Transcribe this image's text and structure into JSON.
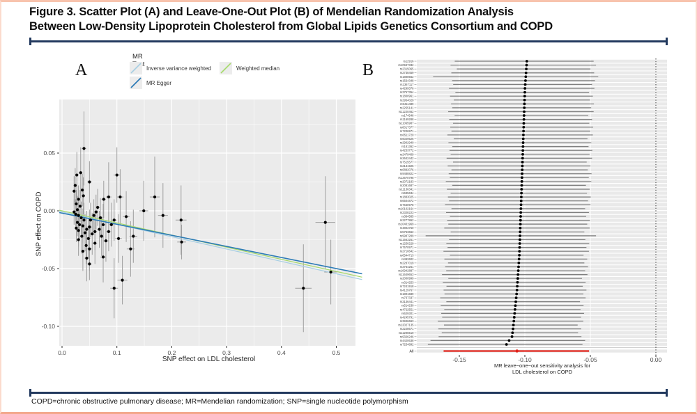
{
  "page": {
    "title_line1": "Figure 3. Scatter Plot (A) and Leave-One-Out Plot (B) of Mendelian Randomization Analysis",
    "title_line2": "Between Low-Density Lipoprotein Cholesterol from Global Lipids Genetics Consortium and COPD",
    "footnote": "COPD=chronic obstructive pulmonary disease; MR=Mendelian randomization; SNP=single nucleotide polymorphism",
    "border_color": "#f3a88d",
    "rule_color": "#22395e"
  },
  "chart_data": [
    {
      "id": "A",
      "panel_label": "A",
      "type": "scatter",
      "xlabel": "SNP effect on LDL cholesterol",
      "ylabel": "SNP effect on COPD",
      "xlim": [
        -0.005,
        0.547
      ],
      "ylim": [
        -0.117,
        0.0945
      ],
      "x_ticks": [
        0.0,
        0.1,
        0.2,
        0.3,
        0.4,
        0.5
      ],
      "x_tick_labels": [
        "0.0",
        "0.1",
        "0.2",
        "0.3",
        "0.4",
        "0.5"
      ],
      "x_minor_ticks": [
        0.05,
        0.15,
        0.25,
        0.35,
        0.45
      ],
      "y_ticks": [
        0.05,
        0.0,
        -0.05,
        -0.1
      ],
      "y_tick_labels": [
        "0.05",
        "0.00",
        "-0.05",
        "-0.10"
      ],
      "y_minor_ticks": [
        0.075,
        0.025,
        -0.025,
        -0.075
      ],
      "grid": true,
      "panel_bg": "#ebebeb",
      "point_color": "#000000",
      "errorbar_color": "#9e9e9e",
      "legend": {
        "title": "MR Test",
        "items": [
          {
            "label": "Inverse variance weighted",
            "color": "#a6cee3"
          },
          {
            "label": "Weighted median",
            "color": "#a5d96a"
          },
          {
            "label": "MR Egger",
            "color": "#2c7bb6"
          }
        ]
      },
      "lines": [
        {
          "name": "Inverse variance weighted",
          "color": "#a6cee3",
          "intercept": -0.001,
          "slope": -0.107,
          "width": 1.2
        },
        {
          "name": "Weighted median",
          "color": "#a5d96a",
          "intercept": 0.0,
          "slope": -0.105,
          "width": 1.2
        },
        {
          "name": "MR Egger",
          "color": "#2c7bb6",
          "intercept": -0.002,
          "slope": -0.096,
          "width": 1.6
        }
      ],
      "points": [
        [
          0.04,
          0.054,
          0.032,
          0.004
        ],
        [
          0.027,
          0.031,
          0.02,
          0.003
        ],
        [
          0.034,
          0.033,
          0.022,
          0.003
        ],
        [
          0.05,
          0.025,
          0.018,
          0.004
        ],
        [
          0.024,
          0.022,
          0.015,
          0.003
        ],
        [
          0.037,
          0.018,
          0.014,
          0.003
        ],
        [
          0.022,
          0.017,
          0.013,
          0.003
        ],
        [
          0.039,
          0.013,
          0.016,
          0.003
        ],
        [
          0.03,
          0.01,
          0.012,
          0.003
        ],
        [
          0.026,
          0.006,
          0.012,
          0.003
        ],
        [
          0.033,
          0.004,
          0.014,
          0.003
        ],
        [
          0.028,
          0.001,
          0.012,
          0.003
        ],
        [
          0.022,
          -0.001,
          0.011,
          0.003
        ],
        [
          0.025,
          -0.003,
          0.013,
          0.003
        ],
        [
          0.03,
          -0.004,
          0.012,
          0.003
        ],
        [
          0.035,
          -0.006,
          0.014,
          0.003
        ],
        [
          0.04,
          -0.008,
          0.015,
          0.003
        ],
        [
          0.028,
          -0.01,
          0.012,
          0.003
        ],
        [
          0.032,
          -0.012,
          0.013,
          0.003
        ],
        [
          0.038,
          -0.013,
          0.015,
          0.003
        ],
        [
          0.026,
          -0.015,
          0.012,
          0.003
        ],
        [
          0.03,
          -0.017,
          0.014,
          0.003
        ],
        [
          0.045,
          -0.016,
          0.016,
          0.004
        ],
        [
          0.05,
          -0.014,
          0.015,
          0.004
        ],
        [
          0.042,
          -0.019,
          0.016,
          0.003
        ],
        [
          0.036,
          -0.022,
          0.015,
          0.003
        ],
        [
          0.03,
          -0.025,
          0.014,
          0.003
        ],
        [
          0.048,
          -0.024,
          0.017,
          0.004
        ],
        [
          0.055,
          -0.02,
          0.018,
          0.004
        ],
        [
          0.06,
          -0.018,
          0.016,
          0.004
        ],
        [
          0.052,
          -0.008,
          0.015,
          0.004
        ],
        [
          0.058,
          -0.004,
          0.014,
          0.004
        ],
        [
          0.062,
          -0.001,
          0.015,
          0.004
        ],
        [
          0.065,
          0.003,
          0.016,
          0.004
        ],
        [
          0.07,
          -0.006,
          0.017,
          0.004
        ],
        [
          0.075,
          -0.012,
          0.018,
          0.004
        ],
        [
          0.068,
          -0.016,
          0.016,
          0.004
        ],
        [
          0.072,
          -0.022,
          0.017,
          0.004
        ],
        [
          0.06,
          -0.028,
          0.018,
          0.004
        ],
        [
          0.044,
          -0.03,
          0.016,
          0.003
        ],
        [
          0.05,
          -0.033,
          0.019,
          0.004
        ],
        [
          0.038,
          -0.035,
          0.017,
          0.003
        ],
        [
          0.045,
          -0.041,
          0.02,
          0.004
        ],
        [
          0.05,
          -0.046,
          0.014,
          0.004
        ],
        [
          0.075,
          -0.04,
          0.022,
          0.005
        ],
        [
          0.08,
          -0.026,
          0.018,
          0.005
        ],
        [
          0.085,
          -0.018,
          0.017,
          0.005
        ],
        [
          0.09,
          -0.012,
          0.019,
          0.005
        ],
        [
          0.095,
          -0.008,
          0.018,
          0.005
        ],
        [
          0.076,
          0.01,
          0.016,
          0.004
        ],
        [
          0.085,
          0.012,
          0.03,
          0.005
        ],
        [
          0.103,
          -0.024,
          0.021,
          0.006
        ],
        [
          0.106,
          0.012,
          0.024,
          0.006
        ],
        [
          0.1,
          0.031,
          0.024,
          0.006
        ],
        [
          0.117,
          -0.005,
          0.022,
          0.006
        ],
        [
          0.11,
          -0.06,
          0.021,
          0.009
        ],
        [
          0.095,
          -0.067,
          0.026,
          0.007
        ],
        [
          0.125,
          -0.033,
          0.024,
          0.007
        ],
        [
          0.13,
          -0.022,
          0.023,
          0.007
        ],
        [
          0.149,
          0.0,
          0.026,
          0.008
        ],
        [
          0.169,
          0.012,
          0.035,
          0.009
        ],
        [
          0.184,
          -0.004,
          0.028,
          0.009
        ],
        [
          0.218,
          -0.027,
          0.015,
          0.008
        ],
        [
          0.217,
          -0.008,
          0.03,
          0.01
        ],
        [
          0.44,
          -0.067,
          0.038,
          0.015
        ],
        [
          0.49,
          -0.053,
          0.028,
          0.012
        ],
        [
          0.48,
          -0.01,
          0.04,
          0.018
        ]
      ]
    },
    {
      "id": "B",
      "panel_label": "B",
      "type": "forest",
      "xlabel_line1": "MR leave−one−out sensitivity analysis for",
      "xlabel_line2": "LDL cholesterol on COPD",
      "xlim": [
        -0.182,
        0.0085
      ],
      "x_ticks": [
        -0.15,
        -0.1,
        -0.05,
        0.0
      ],
      "x_tick_labels": [
        "-0.15",
        "-0.10",
        "-0.05",
        "0.00"
      ],
      "zero_line": 0.0,
      "band_color": "#e9e9e9",
      "ci_color": "#7f7f7f",
      "dot_color": "#000000",
      "all_row": {
        "label": "All",
        "est": -0.106,
        "lo": -0.162,
        "hi": -0.051,
        "color": "#e2231a"
      },
      "rows": [
        [
          "rs12916",
          -0.0985,
          -0.1535,
          -0.0475
        ],
        [
          "rs10947332",
          -0.0987,
          -0.1567,
          -0.0457
        ],
        [
          "rs2315065",
          -0.0989,
          -0.1519,
          -0.0499
        ],
        [
          "rs2738459",
          -0.0991,
          -0.1561,
          -0.0471
        ],
        [
          "rs1800562",
          -0.0993,
          -0.17,
          -0.044
        ],
        [
          "rs1564348",
          -0.0995,
          -0.1555,
          -0.0465
        ],
        [
          "rs1367117",
          -0.0997,
          -0.1547,
          -0.0487
        ],
        [
          "rs4299376",
          -0.0999,
          -0.1579,
          -0.0469
        ],
        [
          "rs3757354",
          -0.1,
          -0.153,
          -0.051
        ],
        [
          "rs1800961",
          -0.1001,
          -0.1571,
          -0.0481
        ],
        [
          "rs2954029",
          -0.1002,
          -0.1542,
          -0.0502
        ],
        [
          "rs9411489",
          -0.1003,
          -0.1563,
          -0.0473
        ],
        [
          "rs2255141",
          -0.1004,
          -0.1554,
          -0.0494
        ],
        [
          "rs11220462",
          -0.1005,
          -0.1585,
          -0.0475
        ],
        [
          "rs174546",
          -0.1006,
          -0.1536,
          -0.0516
        ],
        [
          "rs1169288",
          -0.1007,
          -0.1577,
          -0.0487
        ],
        [
          "rs11065987",
          -0.1008,
          -0.1548,
          -0.0508
        ],
        [
          "rs8017377",
          -0.1009,
          -0.1569,
          -0.0479
        ],
        [
          "rs7206971",
          -0.101,
          -0.156,
          -0.05
        ],
        [
          "rs6511720",
          -0.1011,
          -0.1591,
          -0.0481
        ],
        [
          "rs6029526",
          -0.1012,
          -0.1542,
          -0.0522
        ],
        [
          "rs2902940",
          -0.1013,
          -0.1583,
          -0.0493
        ],
        [
          "rs181362",
          -0.1014,
          -0.1554,
          -0.0514
        ],
        [
          "rs4253772",
          -0.1015,
          -0.1575,
          -0.0485
        ],
        [
          "rs2479409",
          -0.1016,
          -0.1566,
          -0.0506
        ],
        [
          "rs2642442",
          -0.1017,
          -0.1597,
          -0.0487
        ],
        [
          "rs7515577",
          -0.1018,
          -0.1548,
          -0.0528
        ],
        [
          "rs2131925",
          -0.1019,
          -0.1589,
          -0.0499
        ],
        [
          "rs6882076",
          -0.102,
          -0.156,
          -0.052
        ],
        [
          "rs9488822",
          -0.1021,
          -0.1581,
          -0.0491
        ],
        [
          "rs12670798",
          -0.1022,
          -0.1572,
          -0.0512
        ],
        [
          "rs2072183",
          -0.1023,
          -0.1603,
          -0.0493
        ],
        [
          "rs2081687",
          -0.1024,
          -0.1554,
          -0.0534
        ],
        [
          "rs11136341",
          -0.1025,
          -0.1595,
          -0.0505
        ],
        [
          "rs635634",
          -0.1026,
          -0.1566,
          -0.0526
        ],
        [
          "rs1883025",
          -0.1027,
          -0.1587,
          -0.0497
        ],
        [
          "rs6504872",
          -0.1028,
          -0.1578,
          -0.0518
        ],
        [
          "rs7640978",
          -0.1029,
          -0.1609,
          -0.0499
        ],
        [
          "rs10102164",
          -0.103,
          -0.156,
          -0.054
        ],
        [
          "rs2328223",
          -0.1031,
          -0.1601,
          -0.0511
        ],
        [
          "rs364585",
          -0.1032,
          -0.1572,
          -0.0532
        ],
        [
          "rs2277862",
          -0.1033,
          -0.1593,
          -0.0503
        ],
        [
          "rs10401969",
          -0.1034,
          -0.1584,
          -0.0524
        ],
        [
          "rs4803750",
          -0.1035,
          -0.1615,
          -0.0505
        ],
        [
          "rs5763662",
          -0.1036,
          -0.1566,
          -0.0546
        ],
        [
          "rs9987289",
          -0.1037,
          -0.1757,
          -0.0457
        ],
        [
          "rs11563251",
          -0.1038,
          -0.1578,
          -0.0538
        ],
        [
          "rs1250229",
          -0.1039,
          -0.1599,
          -0.0509
        ],
        [
          "rs7570971",
          -0.104,
          -0.159,
          -0.053
        ],
        [
          "rs2710642",
          -0.1041,
          -0.1621,
          -0.0511
        ],
        [
          "rs6544713",
          -0.1042,
          -0.1572,
          -0.0552
        ],
        [
          "rs492602",
          -0.1044,
          -0.1614,
          -0.0524
        ],
        [
          "rs2287019",
          -0.1046,
          -0.1586,
          -0.0546
        ],
        [
          "rs3764261",
          -0.1048,
          -0.1608,
          -0.0518
        ],
        [
          "rs16942887",
          -0.105,
          -0.16,
          -0.054
        ],
        [
          "rs11649653",
          -0.1052,
          -0.1632,
          -0.0522
        ],
        [
          "rs2000999",
          -0.1054,
          -0.1584,
          -0.0564
        ],
        [
          "rs314253",
          -0.1056,
          -0.1626,
          -0.0536
        ],
        [
          "rs7241918",
          -0.1058,
          -0.1598,
          -0.0558
        ],
        [
          "rs4129767",
          -0.106,
          -0.162,
          -0.053
        ],
        [
          "rs1801689",
          -0.1063,
          -0.1613,
          -0.0553
        ],
        [
          "rs737337",
          -0.1066,
          -0.1646,
          -0.0536
        ],
        [
          "rs3136441",
          -0.1069,
          -0.1599,
          -0.0579
        ],
        [
          "rs514230",
          -0.1072,
          -0.1642,
          -0.0552
        ],
        [
          "rs4722551",
          -0.1075,
          -0.1615,
          -0.0575
        ],
        [
          "rs629301",
          -0.1078,
          -0.1638,
          -0.0548
        ],
        [
          "rs4245791",
          -0.1081,
          -0.1631,
          -0.0571
        ],
        [
          "rs3846663",
          -0.1084,
          -0.1664,
          -0.0554
        ],
        [
          "rs12027135",
          -0.1087,
          -0.1617,
          -0.0597
        ],
        [
          "rs2228671",
          -0.109,
          -0.166,
          -0.057
        ],
        [
          "rs11206510",
          -0.1094,
          -0.1634,
          -0.0594
        ],
        [
          "rs9326246",
          -0.1098,
          -0.1658,
          -0.0568
        ],
        [
          "rs4420638",
          -0.112,
          -0.172,
          -0.054
        ],
        [
          "rs7254892",
          -0.114,
          -0.174,
          -0.056
        ]
      ]
    }
  ]
}
